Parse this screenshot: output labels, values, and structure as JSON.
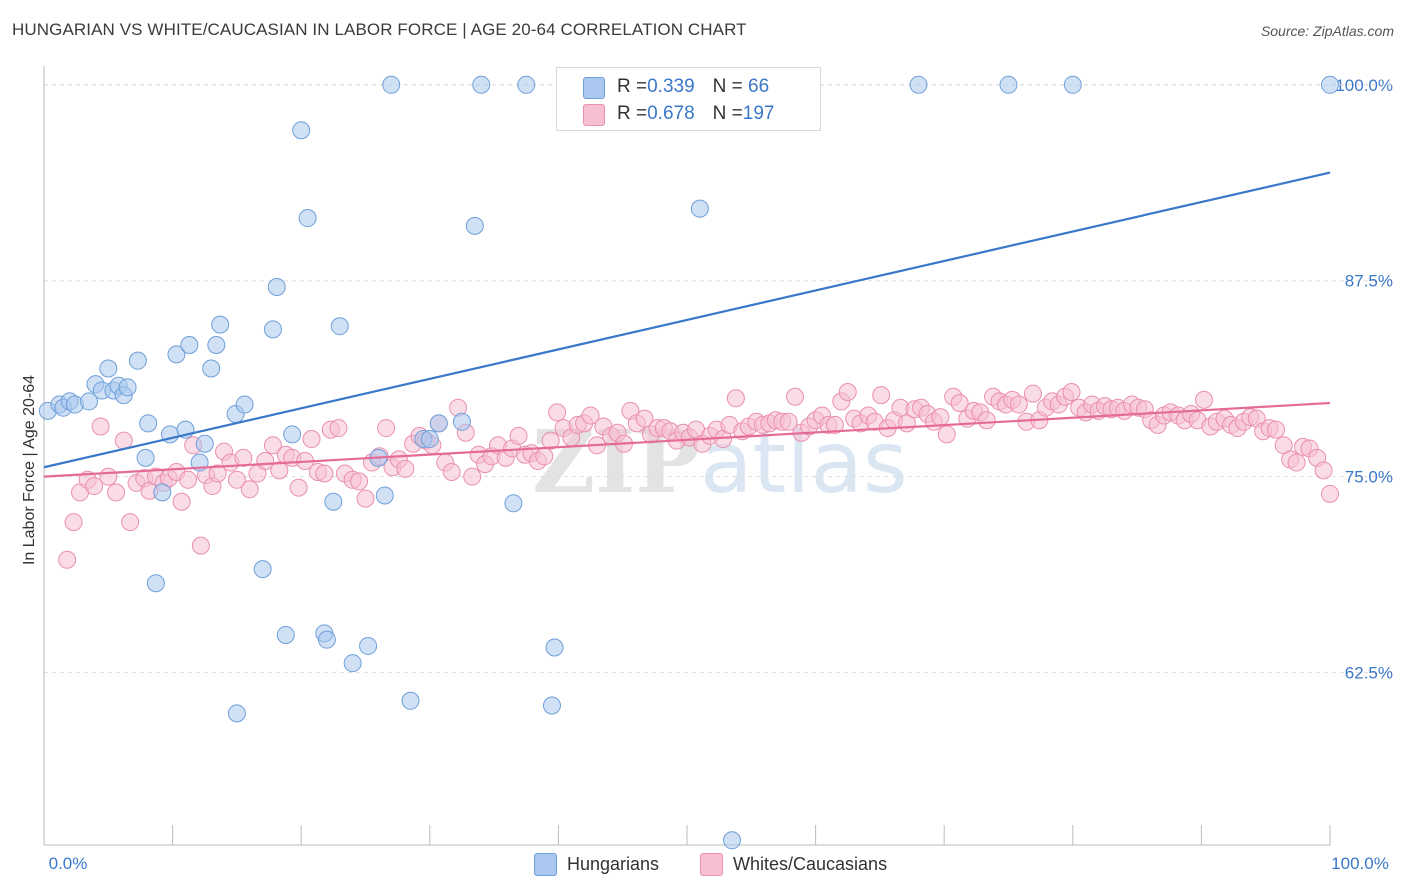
{
  "title": "HUNGARIAN VS WHITE/CAUCASIAN IN LABOR FORCE | AGE 20-64 CORRELATION CHART",
  "source": "Source: ZipAtlas.com",
  "legend_top": {
    "rows": [
      {
        "r_label": "R = ",
        "r_value": "0.339",
        "n_label": "N = ",
        "n_value": " 66"
      },
      {
        "r_label": "R = ",
        "r_value": "0.678",
        "n_label": "N = ",
        "n_value": "197"
      }
    ]
  },
  "legend_bottom": {
    "items": [
      "Hungarians",
      "Whites/Caucasians"
    ]
  },
  "colors": {
    "blue_fill": "#aac8ef",
    "blue_stroke": "#6e9fd9",
    "blue_line": "#3a78c9",
    "pink_fill": "#f6bfd2",
    "pink_stroke": "#ea8fb0",
    "pink_line": "#e56b97",
    "tick_label": "#3a78c9",
    "grid": "#dddddd"
  },
  "chart_data": {
    "type": "scatter",
    "title": "HUNGARIAN VS WHITE/CAUCASIAN IN LABOR FORCE | AGE 20-64 CORRELATION CHART",
    "xlabel": "",
    "ylabel": "In Labor Force | Age 20-64",
    "xlim": [
      0,
      100
    ],
    "ylim": [
      51.5,
      101.2
    ],
    "x_tick_labels": [
      "0.0%",
      "100.0%"
    ],
    "y_ticks": [
      100.0,
      87.5,
      75.0,
      62.5
    ],
    "y_tick_labels": [
      "100.0%",
      "87.5%",
      "75.0%",
      "62.5%"
    ],
    "grid": true,
    "watermark": "ZIPatlas",
    "series": [
      {
        "name": "Hungarians",
        "r": 0.339,
        "n": 66,
        "trend": {
          "x": [
            0,
            100
          ],
          "y": [
            75.6,
            94.4
          ]
        },
        "points": [
          [
            0.3,
            79.2
          ],
          [
            1.2,
            79.6
          ],
          [
            1.5,
            79.4
          ],
          [
            2.0,
            79.8
          ],
          [
            2.4,
            79.6
          ],
          [
            3.5,
            79.8
          ],
          [
            4.0,
            80.9
          ],
          [
            4.5,
            80.5
          ],
          [
            5.0,
            81.9
          ],
          [
            5.4,
            80.5
          ],
          [
            5.8,
            80.8
          ],
          [
            6.2,
            80.2
          ],
          [
            6.5,
            80.7
          ],
          [
            7.3,
            82.4
          ],
          [
            7.9,
            76.2
          ],
          [
            8.1,
            78.4
          ],
          [
            8.7,
            68.2
          ],
          [
            9.2,
            74.0
          ],
          [
            9.8,
            77.7
          ],
          [
            10.3,
            82.8
          ],
          [
            11.0,
            78.0
          ],
          [
            11.3,
            83.4
          ],
          [
            12.1,
            75.9
          ],
          [
            12.5,
            77.1
          ],
          [
            13.0,
            81.9
          ],
          [
            13.4,
            83.4
          ],
          [
            13.7,
            84.7
          ],
          [
            14.9,
            79.0
          ],
          [
            15.0,
            59.9
          ],
          [
            15.6,
            79.6
          ],
          [
            17.0,
            69.1
          ],
          [
            17.8,
            84.4
          ],
          [
            18.1,
            87.1
          ],
          [
            18.8,
            64.9
          ],
          [
            19.3,
            77.7
          ],
          [
            20.0,
            97.1
          ],
          [
            20.5,
            91.5
          ],
          [
            21.8,
            65.0
          ],
          [
            22.0,
            64.6
          ],
          [
            23.0,
            84.6
          ],
          [
            22.5,
            73.4
          ],
          [
            24.0,
            63.1
          ],
          [
            25.2,
            64.2
          ],
          [
            26.0,
            76.2
          ],
          [
            26.5,
            73.8
          ],
          [
            27.0,
            100.0
          ],
          [
            28.5,
            60.7
          ],
          [
            29.5,
            77.4
          ],
          [
            30.0,
            77.4
          ],
          [
            30.7,
            78.4
          ],
          [
            32.5,
            78.5
          ],
          [
            33.5,
            91.0
          ],
          [
            34.0,
            100.0
          ],
          [
            36.5,
            73.3
          ],
          [
            37.5,
            100.0
          ],
          [
            39.5,
            60.4
          ],
          [
            39.7,
            64.1
          ],
          [
            51.0,
            92.1
          ],
          [
            53.5,
            51.8
          ],
          [
            57.0,
            100.0
          ],
          [
            68.0,
            100.0
          ],
          [
            75.0,
            100.0
          ],
          [
            80.0,
            100.0
          ],
          [
            100.0,
            100.0
          ]
        ]
      },
      {
        "name": "Whites/Caucasians",
        "r": 0.678,
        "n": 197,
        "trend": {
          "x": [
            0,
            100
          ],
          "y": [
            75.0,
            79.7
          ]
        },
        "points": [
          [
            1.8,
            69.7
          ],
          [
            2.3,
            72.1
          ],
          [
            2.8,
            74.0
          ],
          [
            3.4,
            74.8
          ],
          [
            3.9,
            74.4
          ],
          [
            4.4,
            78.2
          ],
          [
            5.0,
            75.0
          ],
          [
            5.6,
            74.0
          ],
          [
            6.2,
            77.3
          ],
          [
            6.7,
            72.1
          ],
          [
            7.2,
            74.6
          ],
          [
            7.8,
            74.9
          ],
          [
            8.2,
            74.1
          ],
          [
            8.7,
            75.0
          ],
          [
            9.3,
            74.6
          ],
          [
            9.7,
            74.9
          ],
          [
            10.3,
            75.3
          ],
          [
            10.7,
            73.4
          ],
          [
            11.2,
            74.8
          ],
          [
            11.6,
            77.0
          ],
          [
            12.2,
            70.6
          ],
          [
            12.6,
            75.1
          ],
          [
            13.1,
            74.4
          ],
          [
            13.5,
            75.2
          ],
          [
            14.0,
            76.6
          ],
          [
            14.5,
            75.9
          ],
          [
            15.0,
            74.8
          ],
          [
            15.5,
            76.2
          ],
          [
            16.0,
            74.2
          ],
          [
            16.6,
            75.2
          ],
          [
            17.2,
            76.0
          ],
          [
            17.8,
            77.0
          ],
          [
            18.3,
            75.4
          ],
          [
            18.8,
            76.4
          ],
          [
            19.3,
            76.2
          ],
          [
            19.8,
            74.3
          ],
          [
            20.3,
            76.0
          ],
          [
            20.8,
            77.4
          ],
          [
            21.3,
            75.3
          ],
          [
            21.8,
            75.2
          ],
          [
            22.3,
            78.0
          ],
          [
            22.9,
            78.1
          ],
          [
            23.4,
            75.2
          ],
          [
            24.0,
            74.8
          ],
          [
            24.5,
            74.7
          ],
          [
            25.0,
            73.6
          ],
          [
            25.5,
            75.9
          ],
          [
            26.1,
            76.3
          ],
          [
            26.6,
            78.1
          ],
          [
            27.1,
            75.6
          ],
          [
            27.6,
            76.1
          ],
          [
            28.1,
            75.5
          ],
          [
            28.7,
            77.1
          ],
          [
            29.2,
            77.6
          ],
          [
            29.7,
            77.3
          ],
          [
            30.2,
            77.0
          ],
          [
            30.7,
            78.4
          ],
          [
            31.2,
            75.9
          ],
          [
            31.7,
            75.3
          ],
          [
            32.2,
            79.4
          ],
          [
            32.8,
            77.8
          ],
          [
            33.3,
            75.0
          ],
          [
            33.8,
            76.4
          ],
          [
            34.3,
            75.8
          ],
          [
            34.8,
            76.3
          ],
          [
            35.3,
            77.0
          ],
          [
            35.9,
            76.2
          ],
          [
            36.4,
            76.8
          ],
          [
            36.9,
            77.6
          ],
          [
            37.4,
            76.4
          ],
          [
            37.9,
            76.5
          ],
          [
            38.4,
            76.0
          ],
          [
            38.9,
            76.3
          ],
          [
            39.4,
            77.3
          ],
          [
            39.9,
            79.1
          ],
          [
            40.4,
            78.1
          ],
          [
            41.0,
            77.5
          ],
          [
            41.5,
            78.3
          ],
          [
            42.0,
            78.4
          ],
          [
            42.5,
            78.9
          ],
          [
            43.0,
            77.0
          ],
          [
            43.5,
            78.2
          ],
          [
            44.1,
            77.6
          ],
          [
            44.6,
            77.8
          ],
          [
            45.1,
            77.1
          ],
          [
            45.6,
            79.2
          ],
          [
            46.1,
            78.4
          ],
          [
            46.7,
            78.7
          ],
          [
            47.2,
            77.7
          ],
          [
            47.7,
            78.1
          ],
          [
            48.2,
            78.1
          ],
          [
            48.7,
            77.9
          ],
          [
            49.2,
            77.3
          ],
          [
            49.7,
            77.8
          ],
          [
            50.2,
            77.5
          ],
          [
            50.7,
            78.0
          ],
          [
            51.2,
            77.1
          ],
          [
            51.8,
            77.6
          ],
          [
            52.3,
            78.0
          ],
          [
            52.8,
            77.4
          ],
          [
            53.3,
            78.3
          ],
          [
            53.8,
            80.0
          ],
          [
            54.3,
            77.9
          ],
          [
            54.8,
            78.2
          ],
          [
            55.4,
            78.5
          ],
          [
            55.9,
            78.3
          ],
          [
            56.4,
            78.4
          ],
          [
            56.9,
            78.6
          ],
          [
            57.4,
            78.5
          ],
          [
            57.9,
            78.5
          ],
          [
            58.4,
            80.1
          ],
          [
            58.9,
            77.8
          ],
          [
            59.5,
            78.2
          ],
          [
            60.0,
            78.6
          ],
          [
            60.5,
            78.9
          ],
          [
            61.0,
            78.3
          ],
          [
            61.5,
            78.3
          ],
          [
            62.0,
            79.8
          ],
          [
            62.5,
            80.4
          ],
          [
            63.0,
            78.7
          ],
          [
            63.5,
            78.4
          ],
          [
            64.1,
            78.9
          ],
          [
            64.6,
            78.5
          ],
          [
            65.1,
            80.2
          ],
          [
            65.6,
            78.1
          ],
          [
            66.1,
            78.6
          ],
          [
            66.6,
            79.4
          ],
          [
            67.1,
            78.4
          ],
          [
            67.7,
            79.3
          ],
          [
            68.2,
            79.4
          ],
          [
            68.7,
            79.0
          ],
          [
            69.2,
            78.5
          ],
          [
            69.7,
            78.8
          ],
          [
            70.2,
            77.7
          ],
          [
            70.7,
            80.1
          ],
          [
            71.2,
            79.7
          ],
          [
            71.8,
            78.7
          ],
          [
            72.3,
            79.2
          ],
          [
            72.8,
            79.1
          ],
          [
            73.3,
            78.6
          ],
          [
            73.8,
            80.1
          ],
          [
            74.3,
            79.8
          ],
          [
            74.8,
            79.6
          ],
          [
            75.3,
            79.9
          ],
          [
            75.8,
            79.6
          ],
          [
            76.4,
            78.5
          ],
          [
            76.9,
            80.3
          ],
          [
            77.4,
            78.6
          ],
          [
            77.9,
            79.4
          ],
          [
            78.4,
            79.8
          ],
          [
            78.9,
            79.6
          ],
          [
            79.4,
            80.1
          ],
          [
            79.9,
            80.4
          ],
          [
            80.5,
            79.4
          ],
          [
            81.0,
            79.1
          ],
          [
            81.5,
            79.6
          ],
          [
            82.0,
            79.2
          ],
          [
            82.5,
            79.5
          ],
          [
            83.0,
            79.3
          ],
          [
            83.5,
            79.4
          ],
          [
            84.0,
            79.2
          ],
          [
            84.6,
            79.6
          ],
          [
            85.1,
            79.4
          ],
          [
            85.6,
            79.3
          ],
          [
            86.1,
            78.6
          ],
          [
            86.6,
            78.3
          ],
          [
            87.1,
            78.9
          ],
          [
            87.6,
            79.1
          ],
          [
            88.2,
            78.9
          ],
          [
            88.7,
            78.6
          ],
          [
            89.2,
            79.0
          ],
          [
            89.7,
            78.6
          ],
          [
            90.2,
            79.9
          ],
          [
            90.7,
            78.2
          ],
          [
            91.2,
            78.5
          ],
          [
            91.8,
            78.7
          ],
          [
            92.3,
            78.3
          ],
          [
            92.8,
            78.1
          ],
          [
            93.3,
            78.5
          ],
          [
            93.8,
            78.8
          ],
          [
            94.3,
            78.7
          ],
          [
            94.8,
            77.9
          ],
          [
            95.3,
            78.1
          ],
          [
            95.8,
            78.0
          ],
          [
            96.4,
            77.0
          ],
          [
            96.9,
            76.1
          ],
          [
            97.4,
            75.9
          ],
          [
            97.9,
            76.9
          ],
          [
            98.4,
            76.8
          ],
          [
            99.0,
            76.2
          ],
          [
            99.5,
            75.4
          ],
          [
            100.0,
            73.9
          ]
        ]
      }
    ]
  }
}
